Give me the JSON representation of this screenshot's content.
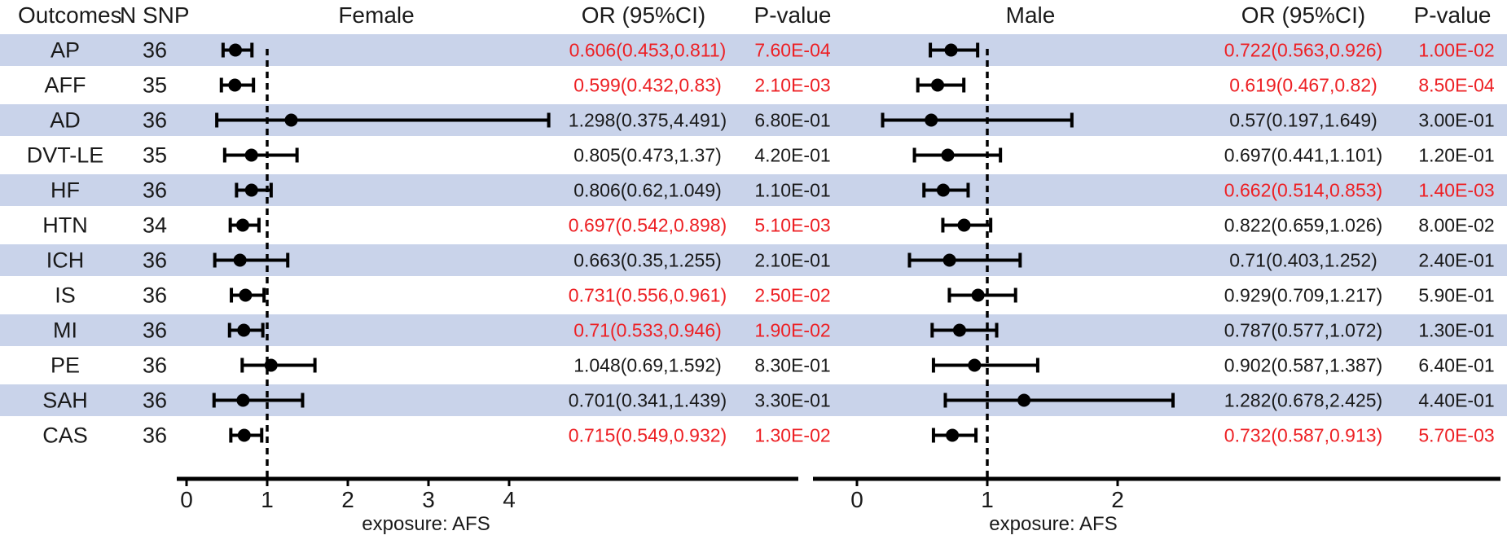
{
  "header": {
    "outcomes": "Outcomes",
    "n_snp": "N SNP"
  },
  "colors": {
    "stripe": "#c9d3ea",
    "significant": "#ed2024",
    "text": "#1a1a1a",
    "line": "#000000"
  },
  "chart_data": {
    "type": "scatter",
    "subtype": "forest-plot (odds ratio with 95% CI error bars, two sex-stratified panels)",
    "grid": false,
    "outcomes": [
      "AP",
      "AFF",
      "AD",
      "DVT-LE",
      "HF",
      "HTN",
      "ICH",
      "IS",
      "MI",
      "PE",
      "SAH",
      "CAS"
    ],
    "n_snp": [
      36,
      35,
      36,
      35,
      36,
      34,
      36,
      36,
      36,
      36,
      36,
      36
    ],
    "panels": [
      {
        "label": "Female",
        "or_header": "OR (95%CI)",
        "p_header": "P-value",
        "axis_label": "exposure: AFS",
        "x_ticks": [
          0,
          1,
          2,
          3,
          4
        ],
        "ref_line": 1,
        "xlim": [
          -0.12,
          7.6
        ],
        "or": [
          0.606,
          0.599,
          1.298,
          0.805,
          0.806,
          0.697,
          0.663,
          0.731,
          0.71,
          1.048,
          0.701,
          0.715
        ],
        "ci_low": [
          0.453,
          0.432,
          0.375,
          0.473,
          0.62,
          0.542,
          0.35,
          0.556,
          0.533,
          0.69,
          0.341,
          0.549
        ],
        "ci_high": [
          0.811,
          0.83,
          4.491,
          1.37,
          1.049,
          0.898,
          1.255,
          0.961,
          0.946,
          1.592,
          1.439,
          0.932
        ],
        "or_labels": [
          "0.606(0.453,0.811)",
          "0.599(0.432,0.83)",
          "1.298(0.375,4.491)",
          "0.805(0.473,1.37)",
          "0.806(0.62,1.049)",
          "0.697(0.542,0.898)",
          "0.663(0.35,1.255)",
          "0.731(0.556,0.961)",
          "0.71(0.533,0.946)",
          "1.048(0.69,1.592)",
          "0.701(0.341,1.439)",
          "0.715(0.549,0.932)"
        ],
        "p_labels": [
          "7.60E-04",
          "2.10E-03",
          "6.80E-01",
          "4.20E-01",
          "1.10E-01",
          "5.10E-03",
          "2.10E-01",
          "2.50E-02",
          "1.90E-02",
          "8.30E-01",
          "3.30E-01",
          "1.30E-02"
        ],
        "significant": [
          true,
          true,
          false,
          false,
          false,
          true,
          false,
          true,
          true,
          false,
          false,
          true
        ]
      },
      {
        "label": "Male",
        "or_header": "OR (95%CI)",
        "p_header": "P-value",
        "axis_label": "exposure: AFS",
        "x_ticks": [
          0,
          1,
          2
        ],
        "ref_line": 1,
        "xlim": [
          -0.34,
          4.94
        ],
        "or": [
          0.722,
          0.619,
          0.57,
          0.697,
          0.662,
          0.822,
          0.71,
          0.929,
          0.787,
          0.902,
          1.282,
          0.732
        ],
        "ci_low": [
          0.563,
          0.467,
          0.197,
          0.441,
          0.514,
          0.659,
          0.403,
          0.709,
          0.577,
          0.587,
          0.678,
          0.587
        ],
        "ci_high": [
          0.926,
          0.82,
          1.649,
          1.101,
          0.853,
          1.026,
          1.252,
          1.217,
          1.072,
          1.387,
          2.425,
          0.913
        ],
        "or_labels": [
          "0.722(0.563,0.926)",
          "0.619(0.467,0.82)",
          "0.57(0.197,1.649)",
          "0.697(0.441,1.101)",
          "0.662(0.514,0.853)",
          "0.822(0.659,1.026)",
          "0.71(0.403,1.252)",
          "0.929(0.709,1.217)",
          "0.787(0.577,1.072)",
          "0.902(0.587,1.387)",
          "1.282(0.678,2.425)",
          "0.732(0.587,0.913)"
        ],
        "p_labels": [
          "1.00E-02",
          "8.50E-04",
          "3.00E-01",
          "1.20E-01",
          "1.40E-03",
          "8.00E-02",
          "2.40E-01",
          "5.90E-01",
          "1.30E-01",
          "6.40E-01",
          "4.40E-01",
          "5.70E-03"
        ],
        "significant": [
          true,
          true,
          false,
          false,
          true,
          false,
          false,
          false,
          false,
          false,
          false,
          true
        ]
      }
    ]
  }
}
